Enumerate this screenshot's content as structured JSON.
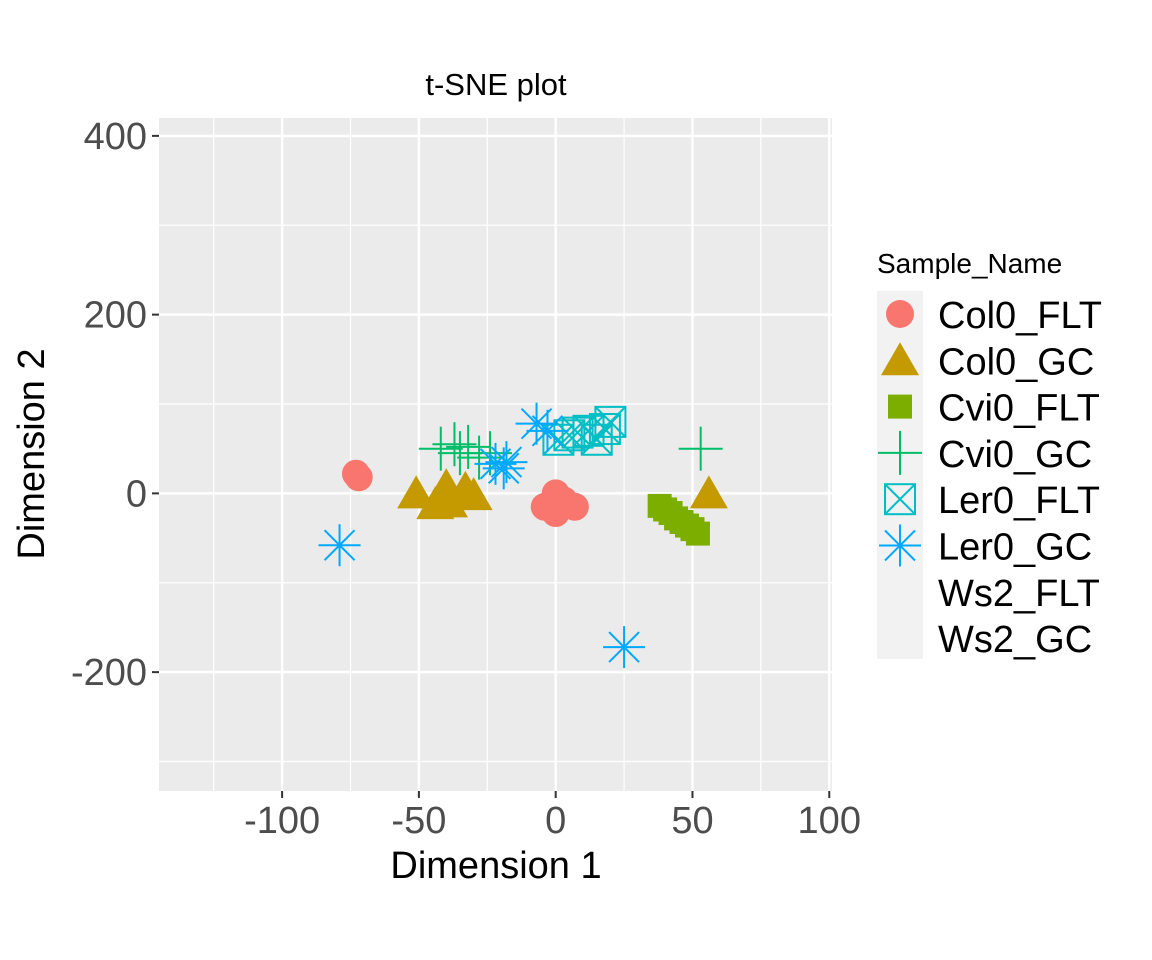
{
  "chart_data": {
    "type": "scatter",
    "title": "t-SNE plot",
    "xlabel": "Dimension 1",
    "ylabel": "Dimension 2",
    "xlim": [
      -145,
      101
    ],
    "ylim": [
      -333,
      420
    ],
    "x_ticks": [
      -100,
      -50,
      0,
      50,
      100
    ],
    "x_tick_labels": [
      "-100",
      "-50",
      "0",
      "50",
      "100"
    ],
    "y_ticks": [
      -200,
      0,
      200,
      400
    ],
    "y_tick_labels": [
      "-200",
      "0",
      "200",
      "400"
    ],
    "grid": true,
    "panel_background": "#ebebeb",
    "legend": {
      "title": "Sample_Name",
      "position": "right"
    },
    "series": [
      {
        "name": "Col0_FLT",
        "shape": "circle",
        "color": "#F8766D",
        "points": [
          [
            -73,
            22
          ],
          [
            -72,
            18
          ],
          [
            -4,
            -15
          ],
          [
            0,
            0
          ],
          [
            0,
            -22
          ],
          [
            3,
            -8
          ],
          [
            7,
            -15
          ]
        ]
      },
      {
        "name": "Col0_GC",
        "shape": "triangle",
        "color": "#C49A00",
        "points": [
          [
            -51,
            0
          ],
          [
            -44,
            -12
          ],
          [
            -40,
            8
          ],
          [
            -39,
            -10
          ],
          [
            -33,
            5
          ],
          [
            -30,
            -2
          ],
          [
            56,
            0
          ]
        ]
      },
      {
        "name": "Cvi0_FLT",
        "shape": "square",
        "color": "#7CAE00",
        "points": [
          [
            38,
            -14
          ],
          [
            40,
            -18
          ],
          [
            42,
            -22
          ],
          [
            44,
            -28
          ],
          [
            46,
            -32
          ],
          [
            48,
            -36
          ],
          [
            50,
            -40
          ],
          [
            52,
            -45
          ]
        ]
      },
      {
        "name": "Cvi0_GC",
        "shape": "plus",
        "color": "#00BE67",
        "points": [
          [
            -42,
            50
          ],
          [
            -37,
            55
          ],
          [
            -35,
            45
          ],
          [
            -32,
            52
          ],
          [
            -28,
            40
          ],
          [
            -24,
            45
          ],
          [
            53,
            50
          ]
        ]
      },
      {
        "name": "Ler0_FLT",
        "shape": "square-x",
        "color": "#00BFC4",
        "points": [
          [
            1,
            60
          ],
          [
            5,
            65
          ],
          [
            8,
            68
          ],
          [
            12,
            70
          ],
          [
            15,
            60
          ],
          [
            18,
            72
          ],
          [
            20,
            80
          ]
        ]
      },
      {
        "name": "Ler0_GC",
        "shape": "asterisk",
        "color": "#00A9FF",
        "points": [
          [
            -79,
            -58
          ],
          [
            -22,
            33
          ],
          [
            -19,
            28
          ],
          [
            -18,
            35
          ],
          [
            -7,
            78
          ],
          [
            -3,
            70
          ],
          [
            25,
            -172
          ]
        ]
      },
      {
        "name": "Ws2_FLT",
        "shape": "none",
        "color": "#C77CFF",
        "points": []
      },
      {
        "name": "Ws2_GC",
        "shape": "none",
        "color": "#FF61CC",
        "points": []
      }
    ]
  }
}
